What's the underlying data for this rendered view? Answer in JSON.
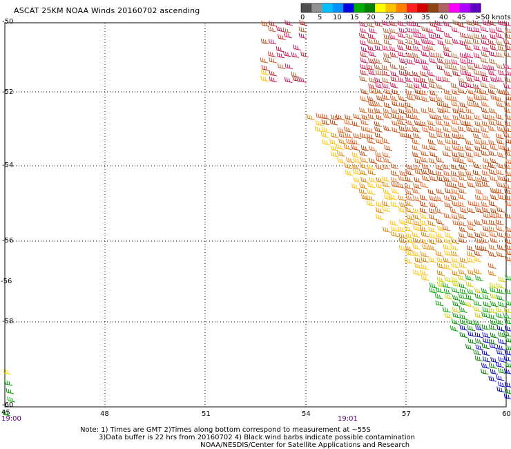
{
  "title": "ASCAT 25KM NOAA Winds 20160702 ascending",
  "legend": {
    "colors": [
      "#505050",
      "#909090",
      "#00c0ff",
      "#0090ff",
      "#0000e0",
      "#00b000",
      "#008000",
      "#ffff00",
      "#ffc000",
      "#ff8000",
      "#ff2020",
      "#d00000",
      "#8b4513",
      "#b06060",
      "#ff00ff",
      "#b000ff",
      "#6000c0"
    ],
    "labels": [
      "0",
      "5",
      "10",
      "15",
      "20",
      "25",
      "30",
      "35",
      "40",
      "45",
      ">50 knots"
    ]
  },
  "axes": {
    "lat_labels": [
      "-50",
      "-52",
      "-54",
      "-56",
      "-56",
      "-58",
      "-60"
    ],
    "lon_labels": [
      "45",
      "48",
      "51",
      "54",
      "57",
      "60"
    ]
  },
  "times": [
    "19:00",
    "19:01"
  ],
  "notes": [
    "Note: 1) Times are GMT 2)Times along bottom correspond to measurement at ~55S",
    "3)Data buffer is 22 hrs from 20160702 4) Black wind barbs indicate possible contamination",
    "NOAA/NESDIS/Center for Satellite Applications and Research"
  ]
}
